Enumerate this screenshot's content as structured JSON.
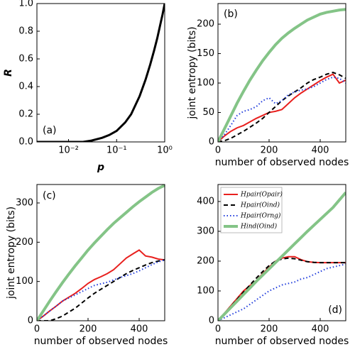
{
  "chart_data": [
    {
      "type": "line",
      "panel_label": "(a)",
      "xlabel": "p",
      "ylabel": "R",
      "xscale": "log",
      "xlim": [
        0.0022,
        1
      ],
      "ylim": [
        0,
        1
      ],
      "xticks": [
        {
          "value": 0.01,
          "label": "10⁻²"
        },
        {
          "value": 0.1,
          "label": "10⁻¹"
        },
        {
          "value": 1,
          "label": "10⁰"
        }
      ],
      "yticks": [
        {
          "value": 0,
          "label": "0.0"
        },
        {
          "value": 0.2,
          "label": "0.2"
        },
        {
          "value": 0.4,
          "label": "0.4"
        },
        {
          "value": 0.6,
          "label": "0.6"
        },
        {
          "value": 0.8,
          "label": "0.8"
        },
        {
          "value": 1,
          "label": "1.0"
        }
      ],
      "x": [
        0.0022,
        0.01,
        0.02,
        0.03,
        0.05,
        0.07,
        0.1,
        0.15,
        0.2,
        0.3,
        0.4,
        0.5,
        0.6,
        0.7,
        0.8,
        0.9,
        1.0
      ],
      "series": [
        {
          "color": "#000000",
          "dash": "solid",
          "width": 3,
          "values": [
            0,
            0,
            0,
            0.01,
            0.03,
            0.05,
            0.08,
            0.14,
            0.2,
            0.33,
            0.45,
            0.56,
            0.66,
            0.75,
            0.84,
            0.92,
            1.0
          ]
        }
      ]
    },
    {
      "type": "line",
      "panel_label": "(b)",
      "xlabel": "number of observed nodes",
      "ylabel": "joint entropy (bits)",
      "xlim": [
        0,
        500
      ],
      "ylim": [
        0,
        235
      ],
      "xticks": [
        0,
        200,
        400
      ],
      "yticks": [
        0,
        50,
        100,
        150,
        200
      ],
      "x": [
        0,
        25,
        50,
        75,
        100,
        125,
        150,
        175,
        200,
        225,
        250,
        275,
        300,
        325,
        350,
        375,
        400,
        425,
        450,
        475,
        500
      ],
      "series": [
        {
          "color": "#e8201e",
          "dash": "solid",
          "width": 2,
          "values": [
            0,
            10,
            18,
            24,
            28,
            34,
            40,
            45,
            50,
            52,
            55,
            65,
            75,
            83,
            90,
            97,
            104,
            110,
            115,
            100,
            105
          ]
        },
        {
          "color": "#000000",
          "dash": "dashed",
          "width": 2,
          "values": [
            0,
            2,
            6,
            12,
            18,
            25,
            32,
            40,
            50,
            60,
            70,
            78,
            85,
            92,
            100,
            106,
            110,
            115,
            118,
            114,
            108
          ]
        },
        {
          "color": "#1f3bdc",
          "dash": "dotted",
          "width": 2,
          "values": [
            0,
            12,
            28,
            45,
            52,
            55,
            60,
            70,
            75,
            65,
            70,
            80,
            85,
            88,
            90,
            94,
            100,
            106,
            110,
            108,
            100
          ]
        },
        {
          "color": "#84c487",
          "dash": "solid",
          "width": 4,
          "values": [
            0,
            22,
            44,
            66,
            86,
            105,
            122,
            138,
            152,
            165,
            176,
            185,
            193,
            200,
            207,
            212,
            217,
            220,
            222,
            224,
            225
          ]
        }
      ]
    },
    {
      "type": "line",
      "panel_label": "(c)",
      "xlabel": "number of observed nodes",
      "ylabel": "joint entropy (bits)",
      "xlim": [
        0,
        500
      ],
      "ylim": [
        0,
        347
      ],
      "xticks": [
        0,
        200,
        400
      ],
      "yticks": [
        0,
        100,
        200,
        300
      ],
      "x": [
        0,
        25,
        50,
        75,
        100,
        125,
        150,
        175,
        200,
        225,
        250,
        275,
        300,
        325,
        350,
        375,
        400,
        425,
        450,
        475,
        500
      ],
      "series": [
        {
          "color": "#e8201e",
          "dash": "solid",
          "width": 2,
          "values": [
            0,
            12,
            25,
            37,
            50,
            60,
            70,
            82,
            95,
            105,
            112,
            120,
            130,
            145,
            160,
            170,
            180,
            165,
            162,
            157,
            155
          ]
        },
        {
          "color": "#000000",
          "dash": "dashed",
          "width": 2,
          "values": [
            0,
            0,
            0,
            5,
            12,
            22,
            32,
            45,
            58,
            70,
            80,
            90,
            100,
            110,
            120,
            128,
            135,
            142,
            148,
            152,
            155
          ]
        },
        {
          "color": "#1f3bdc",
          "dash": "dotted",
          "width": 2,
          "values": [
            0,
            12,
            25,
            37,
            50,
            58,
            66,
            74,
            82,
            90,
            94,
            98,
            104,
            110,
            115,
            120,
            127,
            135,
            143,
            150,
            155
          ]
        },
        {
          "color": "#84c487",
          "dash": "solid",
          "width": 4,
          "values": [
            0,
            25,
            50,
            74,
            97,
            119,
            140,
            160,
            180,
            198,
            215,
            232,
            248,
            262,
            276,
            290,
            303,
            315,
            327,
            337,
            345
          ]
        }
      ]
    },
    {
      "type": "line",
      "panel_label": "(d)",
      "xlabel": "number of observed nodes",
      "legend": "top-left",
      "xlim": [
        0,
        500
      ],
      "ylim": [
        0,
        457
      ],
      "xticks": [
        0,
        200,
        400
      ],
      "yticks": [
        0,
        100,
        200,
        300,
        400
      ],
      "x": [
        0,
        25,
        50,
        75,
        100,
        125,
        150,
        175,
        200,
        225,
        250,
        275,
        300,
        325,
        350,
        375,
        400,
        425,
        450,
        475,
        500
      ],
      "series": [
        {
          "name": "Hpair(Opair)",
          "color": "#e8201e",
          "dash": "solid",
          "width": 2,
          "values": [
            0,
            25,
            50,
            75,
            100,
            118,
            135,
            158,
            180,
            200,
            210,
            215,
            215,
            205,
            198,
            196,
            195,
            195,
            195,
            195,
            195
          ]
        },
        {
          "name": "Hpair(Oind)",
          "color": "#000000",
          "dash": "dashed",
          "width": 2,
          "values": [
            0,
            24,
            48,
            72,
            96,
            120,
            143,
            165,
            185,
            200,
            207,
            210,
            208,
            203,
            198,
            196,
            195,
            195,
            195,
            195,
            195
          ]
        },
        {
          "name": "Hpair(Orng)",
          "color": "#1f3bdc",
          "dash": "dotted",
          "width": 2,
          "values": [
            0,
            10,
            20,
            30,
            40,
            55,
            70,
            85,
            100,
            110,
            120,
            125,
            130,
            140,
            145,
            155,
            165,
            175,
            180,
            185,
            190
          ]
        },
        {
          "name": "Hind(Oind)",
          "color": "#84c487",
          "dash": "solid",
          "width": 4,
          "values": [
            0,
            22,
            44,
            66,
            88,
            110,
            132,
            153,
            174,
            195,
            216,
            237,
            258,
            279,
            300,
            320,
            340,
            360,
            380,
            405,
            430
          ]
        }
      ]
    }
  ]
}
